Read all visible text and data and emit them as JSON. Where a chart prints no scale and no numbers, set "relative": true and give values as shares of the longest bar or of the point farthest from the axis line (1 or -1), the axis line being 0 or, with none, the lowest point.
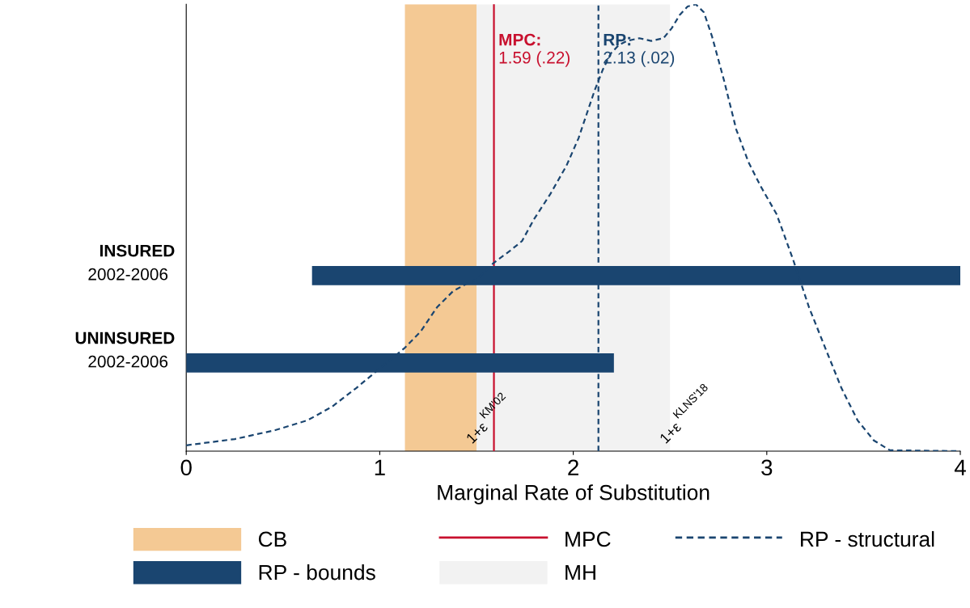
{
  "chart_data": [
    {
      "type": "line",
      "relative": true,
      "xlim": [
        0,
        4
      ],
      "xticks": [
        0,
        1,
        2,
        3,
        4
      ],
      "tick_labels": false,
      "series": [
        {
          "name": "RP - structural",
          "type": "line",
          "color": "#1a4570",
          "line_style": "dashed",
          "x": [
            0,
            0.251,
            0.46,
            0.627,
            0.752,
            0.878,
            1.003,
            1.129,
            1.212,
            1.296,
            1.379,
            1.442,
            1.505,
            1.588,
            1.672,
            1.735,
            1.797,
            1.881,
            1.964,
            2.027,
            2.069,
            2.111,
            2.153,
            2.194,
            2.236,
            2.278,
            2.341,
            2.403,
            2.466,
            2.508,
            2.55,
            2.591,
            2.633,
            2.675,
            2.717,
            2.78,
            2.842,
            2.905,
            2.968,
            3.051,
            3.135,
            3.218,
            3.302,
            3.386,
            3.469,
            3.553,
            3.636,
            4.0
          ],
          "values": [
            0.013,
            0.027,
            0.047,
            0.069,
            0.099,
            0.141,
            0.186,
            0.231,
            0.268,
            0.322,
            0.358,
            0.373,
            0.385,
            0.421,
            0.448,
            0.47,
            0.519,
            0.575,
            0.638,
            0.7,
            0.754,
            0.808,
            0.854,
            0.89,
            0.909,
            0.918,
            0.924,
            0.918,
            0.924,
            0.946,
            0.976,
            0.995,
            1.0,
            0.982,
            0.928,
            0.828,
            0.72,
            0.647,
            0.593,
            0.53,
            0.43,
            0.322,
            0.231,
            0.141,
            0.069,
            0.024,
            0.002,
            0
          ]
        }
      ]
    },
    {
      "type": "bar",
      "orientation": "horizontal",
      "xlabel": "Marginal Rate of Substitution",
      "categories": [
        "INSURED\n2002-2006",
        "UNINSURED\n2002-2006"
      ],
      "xlim": [
        0,
        4
      ],
      "xticks": [
        0,
        1,
        2,
        3,
        4
      ],
      "legend": "bottom",
      "grid": false,
      "series": [
        {
          "name": "RP - bounds",
          "type": "bar",
          "color": "#1a4570",
          "base": [
            0.65,
            0
          ],
          "values": [
            3.35,
            2.21
          ]
        }
      ],
      "bands": [
        {
          "axis": "x",
          "from": 1.13,
          "to": 1.5,
          "label": "CB",
          "color": "#f4c994"
        },
        {
          "axis": "x",
          "from": 1.5,
          "to": 2.5,
          "label": "MH",
          "color": "#f2f2f2"
        }
      ],
      "ref_lines": [
        {
          "axis": "x",
          "value": 1.59,
          "label": "MPC",
          "color": "#c8102e",
          "line_style": "solid"
        },
        {
          "axis": "x",
          "value": 2.13,
          "color": "#1a4570",
          "line_style": "dashed"
        }
      ],
      "annotations": [
        "MPC:\n1.59 (.22)",
        "RP:\n2.13 (.02)",
        "1+ε$^{KM'02}$",
        "1+ε$^{KLNS'18}$"
      ]
    }
  ]
}
